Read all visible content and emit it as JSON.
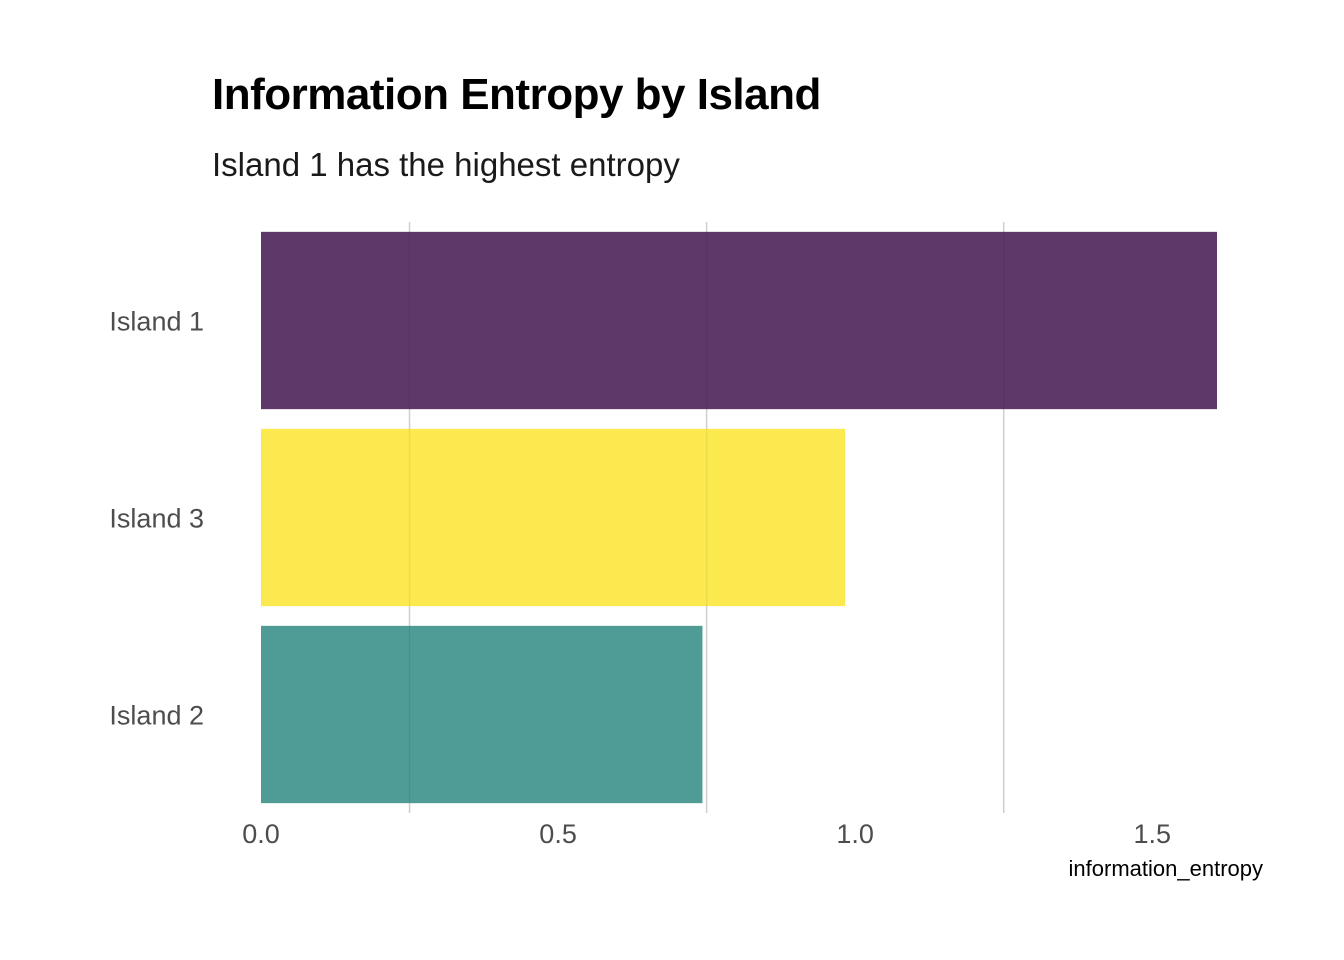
{
  "chart_data": {
    "type": "bar",
    "orientation": "horizontal",
    "title": "Information Entropy by Island",
    "subtitle": "Island 1 has the highest entropy",
    "xlabel": "information_entropy",
    "ylabel": "",
    "categories": [
      "Island 1",
      "Island 3",
      "Island 2"
    ],
    "values": [
      1.609,
      0.983,
      0.743
    ],
    "colors": [
      "#5B3466",
      "#FCE94C",
      "#4A9A93"
    ],
    "xlim": [
      0,
      1.609
    ],
    "xticks": [
      "0.0",
      "0.5",
      "1.0",
      "1.5"
    ],
    "xtick_values": [
      0,
      0.5,
      1.0,
      1.5
    ],
    "minor_gridlines": [
      0.25,
      0.75,
      1.25
    ],
    "grid": true,
    "legend": "none"
  }
}
